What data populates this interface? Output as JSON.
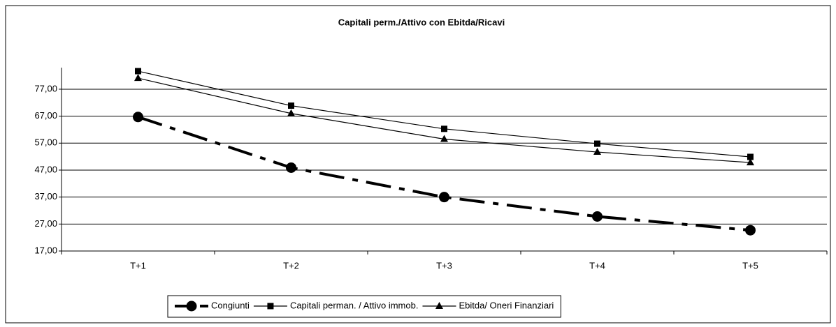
{
  "chart_data": {
    "type": "line",
    "title": "Capitali perm./Attivo con Ebitda/Ricavi",
    "categories": [
      "T+1",
      "T+2",
      "T+3",
      "T+4",
      "T+5"
    ],
    "series": [
      {
        "name": "Congiunti",
        "color": "#000000",
        "style": "dash-dot",
        "marker": "circle",
        "values": [
          66.7,
          47.9,
          37.0,
          29.8,
          24.7
        ]
      },
      {
        "name": "Capitali perman. / Attivo immob.",
        "color": "#000000",
        "style": "solid",
        "marker": "square",
        "values": [
          83.7,
          70.9,
          62.3,
          56.8,
          51.9
        ]
      },
      {
        "name": "Ebitda/ Oneri Finanziari",
        "color": "#000000",
        "style": "solid",
        "marker": "triangle",
        "values": [
          81.1,
          68.0,
          58.5,
          53.7,
          49.8
        ]
      }
    ],
    "ylim": [
      17,
      85
    ],
    "yticks": [
      {
        "value": 17,
        "label": "17,00"
      },
      {
        "value": 27,
        "label": "27,00"
      },
      {
        "value": 37,
        "label": "37,00"
      },
      {
        "value": 47,
        "label": "47,00"
      },
      {
        "value": 57,
        "label": "57,00"
      },
      {
        "value": 67,
        "label": "67,00"
      },
      {
        "value": 77,
        "label": "77,00"
      }
    ],
    "grid": true,
    "legend": "bottom"
  }
}
